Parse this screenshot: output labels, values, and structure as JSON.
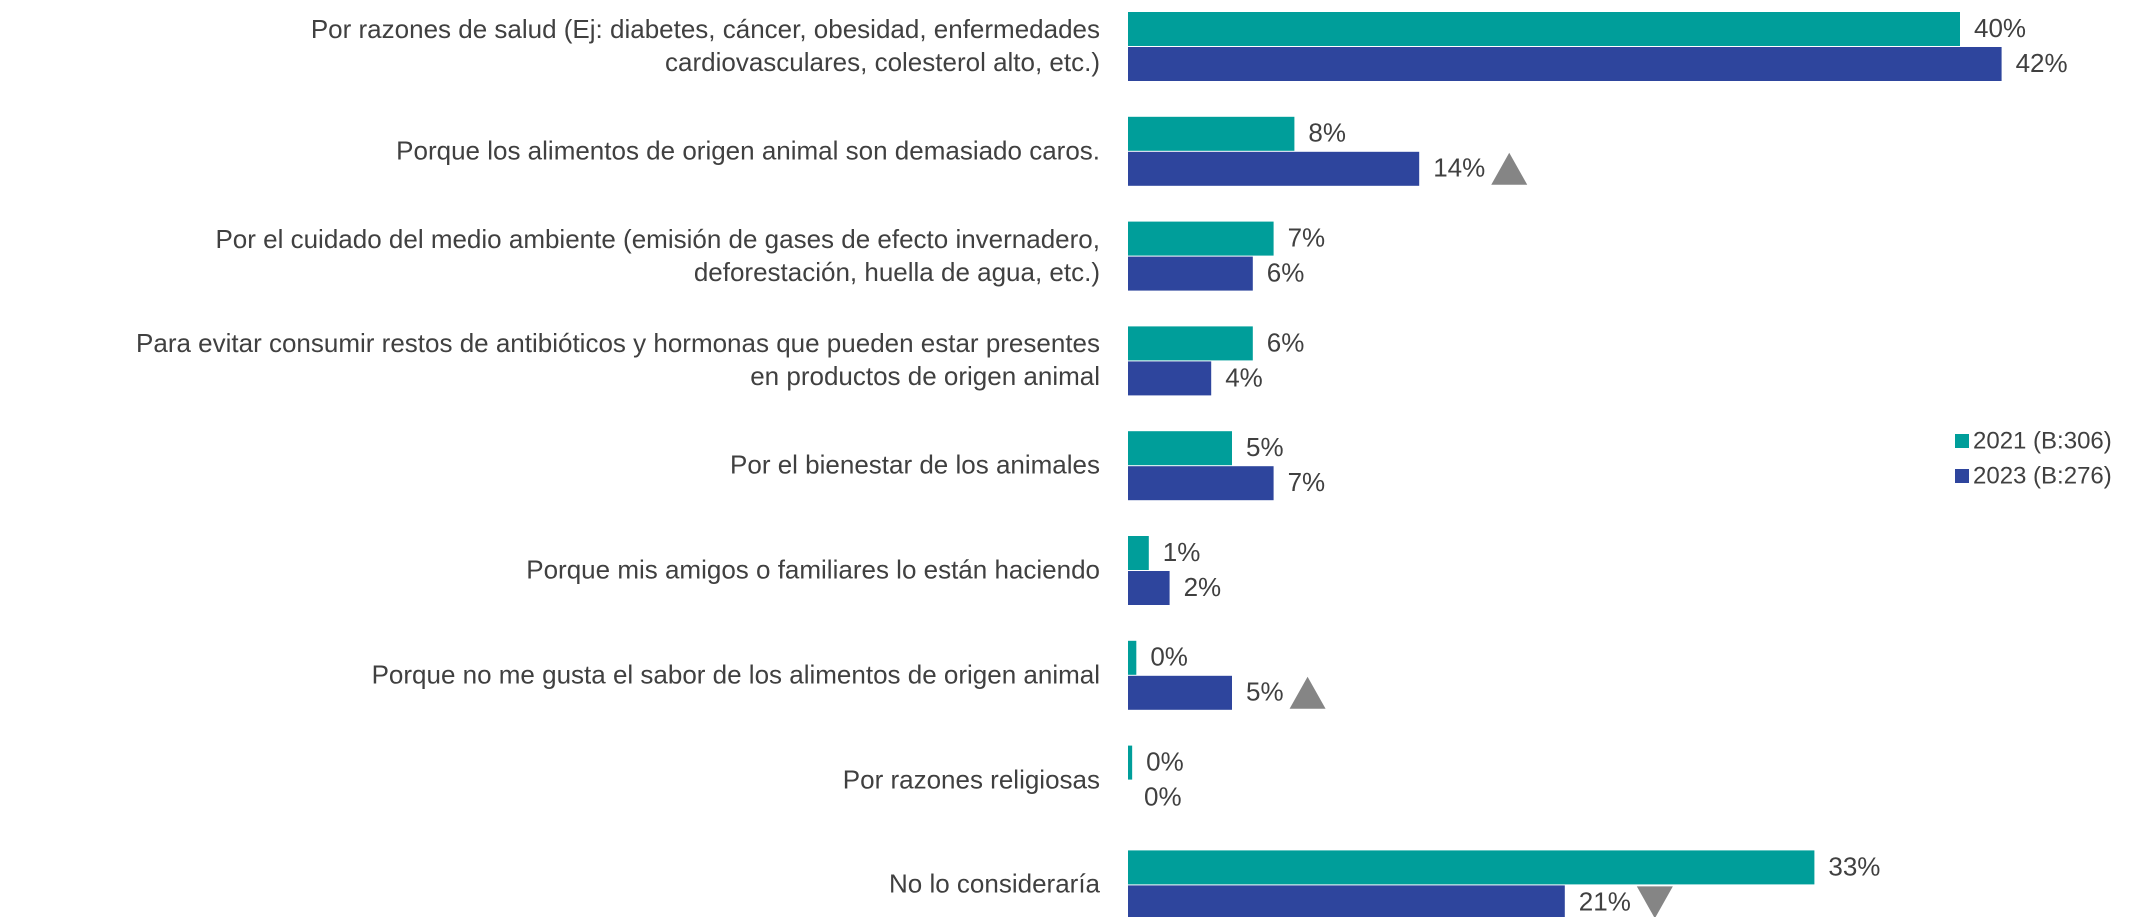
{
  "chart_data": {
    "type": "bar",
    "orientation": "horizontal",
    "categories": [
      "Por razones de salud (Ej: diabetes, cáncer, obesidad, enfermedades\ncardiovasculares, colesterol alto, etc.)",
      "Porque los alimentos de origen animal son demasiado caros.",
      "Por el cuidado del medio ambiente (emisión de gases de efecto invernadero,\ndeforestación, huella de agua, etc.)",
      "Para evitar consumir restos de antibióticos y hormonas que pueden estar presentes\nen productos de origen animal",
      "Por el bienestar de los animales",
      "Porque mis amigos o familiares lo están haciendo",
      "Porque no me gusta el sabor de los alimentos de origen animal",
      "Por razones religiosas",
      "No lo consideraría"
    ],
    "series": [
      {
        "name": "2021 (B:306)",
        "color": "#009e9a",
        "values": [
          40,
          8,
          7,
          6,
          5,
          1,
          0.4,
          0.2,
          33
        ],
        "value_labels": [
          "40%",
          "8%",
          "7%",
          "6%",
          "5%",
          "1%",
          "0%",
          "0%",
          "33%"
        ],
        "markers": [
          null,
          null,
          null,
          null,
          null,
          null,
          null,
          null,
          null
        ]
      },
      {
        "name": "2023 (B:276)",
        "color": "#2e459d",
        "values": [
          42,
          14,
          6,
          4,
          7,
          2,
          5,
          0,
          21
        ],
        "value_labels": [
          "42%",
          "14%",
          "6%",
          "4%",
          "7%",
          "2%",
          "5%",
          "0%",
          "21%"
        ],
        "markers": [
          null,
          "up",
          null,
          null,
          null,
          null,
          "up",
          null,
          "down"
        ]
      }
    ],
    "marker_color": "#858585",
    "legend": "right"
  }
}
